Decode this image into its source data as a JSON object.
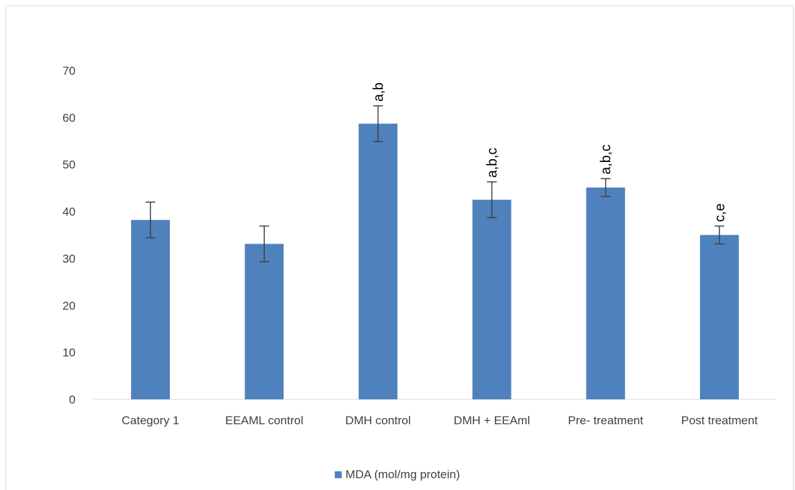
{
  "chart_data": {
    "type": "bar",
    "categories": [
      "Category 1",
      "EEAML control",
      "DMH control",
      "DMH + EEAml",
      "Pre- treatment",
      "Post treatment"
    ],
    "series": [
      {
        "name": "MDA (mol/mg protein)",
        "values": [
          38.2,
          33.1,
          58.7,
          42.5,
          45.1,
          35.0
        ],
        "error": [
          3.8,
          3.8,
          3.8,
          3.8,
          1.9,
          1.9
        ],
        "labels": [
          "",
          "",
          "a,b",
          "a,b,c",
          "a,b,c",
          "c,e"
        ]
      }
    ],
    "ylim": [
      0,
      70
    ],
    "yticks": [
      0,
      10,
      20,
      30,
      40,
      50,
      60,
      70
    ],
    "grid": false,
    "legend": "bottom",
    "colors": {
      "bar": "#4F81BD",
      "error": "#404040",
      "axis": "#d9d9d9"
    }
  }
}
